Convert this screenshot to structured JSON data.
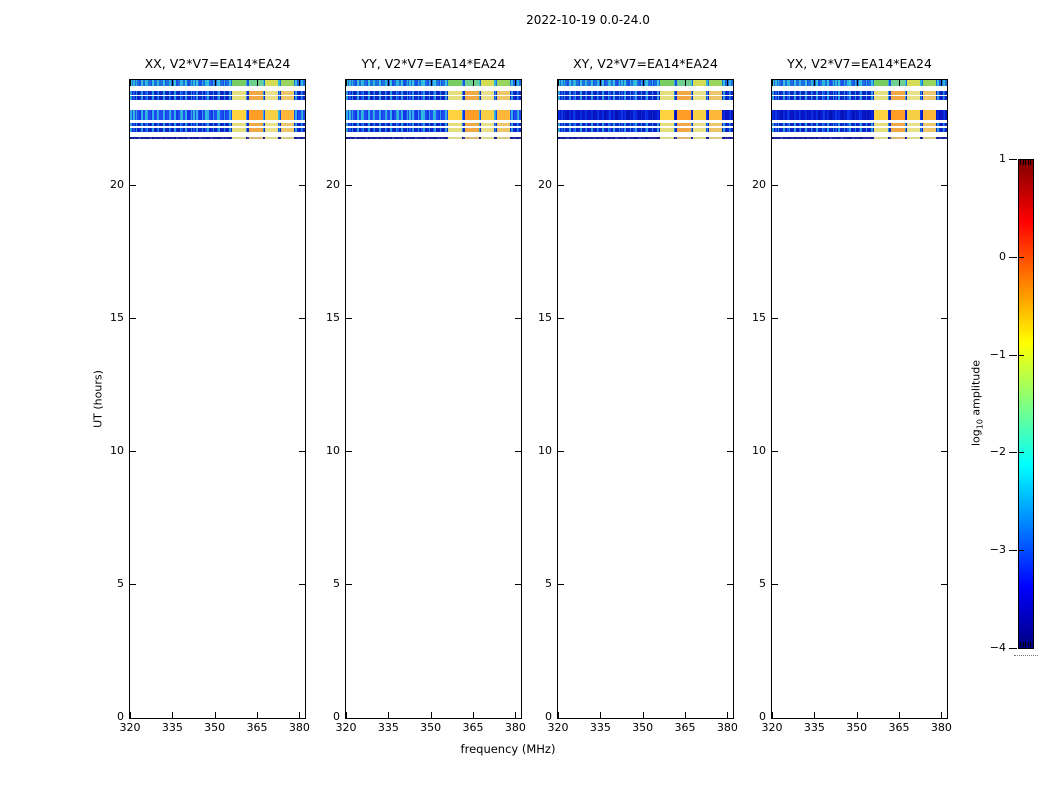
{
  "figure": {
    "suptitle": "2022-10-19 0.0-24.0"
  },
  "chart_data": {
    "type": "heatmap",
    "title": "2022-10-19 0.0-24.0",
    "panels": [
      {
        "id": "xx",
        "title": "XX, V2*V7=EA14*EA24",
        "thick_style": "thick_light"
      },
      {
        "id": "yy",
        "title": "YY, V2*V7=EA14*EA24",
        "thick_style": "thick_light"
      },
      {
        "id": "xy",
        "title": "XY, V2*V7=EA14*EA24",
        "thick_style": "thick_dark"
      },
      {
        "id": "yx",
        "title": "YX, V2*V7=EA14*EA24",
        "thick_style": "thick_dark"
      }
    ],
    "x_axis": {
      "label": "frequency (MHz)",
      "range": [
        320,
        382
      ],
      "ticks": [
        320,
        335,
        350,
        365,
        380
      ]
    },
    "y_axis": {
      "label": "UT (hours)",
      "range": [
        0,
        24
      ],
      "ticks": [
        0,
        5,
        10,
        15,
        20
      ]
    },
    "colorbar": {
      "label_prefix": "log",
      "label_sub": "10",
      "label_suffix": " amplitude",
      "range": [
        -4,
        1
      ],
      "colormap": "jet",
      "ticks": [
        {
          "value": 1,
          "label": "1"
        },
        {
          "value": 0,
          "label": "0"
        },
        {
          "value": -1,
          "label": "−1"
        },
        {
          "value": -2,
          "label": "−2"
        },
        {
          "value": -3,
          "label": "−3"
        },
        {
          "value": -4,
          "label": "−4"
        }
      ],
      "gradient_stops": [
        "#7f0000",
        "#ff0000",
        "#ff8000",
        "#ffff00",
        "#80ff80",
        "#00ffff",
        "#0080ff",
        "#0000ff",
        "#00007f"
      ]
    },
    "stripes": [
      {
        "kind": "top",
        "hours": [
          24.0,
          23.76
        ]
      },
      {
        "kind": "thin",
        "hours": [
          23.57,
          23.43
        ]
      },
      {
        "kind": "thin",
        "hours": [
          23.38,
          23.24
        ]
      },
      {
        "kind": "thick",
        "hours": [
          22.89,
          22.5
        ]
      },
      {
        "kind": "thin",
        "hours": [
          22.4,
          22.26
        ]
      },
      {
        "kind": "thin",
        "hours": [
          22.21,
          22.04
        ]
      },
      {
        "kind": "faint",
        "hours": [
          21.85,
          21.77
        ]
      }
    ],
    "patch_bands_mhz": [
      [
        356,
        361
      ],
      [
        362,
        367
      ],
      [
        368,
        372.5
      ],
      [
        373.5,
        378
      ]
    ],
    "stripe_kinds": {
      "top": {
        "noise": [
          "#38c4dc",
          "#1e6ee2",
          "#2fb9d8",
          "#1a50e6",
          "#30b0dc"
        ],
        "patches": [
          "#77cf62",
          "#6fcf8e",
          "#d5dc55",
          "#99d45c"
        ]
      },
      "thin": {
        "noise": [
          "#2b9fe0",
          "#0d24c4",
          "#1a55ec",
          "#0d2ecc",
          "#2490e0"
        ],
        "patches": [
          "#e6df7d",
          "#f2a844",
          "#e8e18a",
          "#edc66a"
        ]
      },
      "thick_light": {
        "noise": [
          "#2fb0ea",
          "#1e4cf0",
          "#30bcd8",
          "#1437e6",
          "#2e9ce8"
        ],
        "patches": [
          "#ffd23e",
          "#ff9d26",
          "#f7cf45",
          "#ffb73a"
        ]
      },
      "thick_dark": {
        "noise": [
          "#0a2ae0",
          "#0716c8",
          "#0c38e8",
          "#0512b4",
          "#0a28d2"
        ],
        "patches": [
          "#ffd23e",
          "#ff9d26",
          "#f7cf45",
          "#ffb73a"
        ]
      },
      "faint": {
        "noise": [
          "#0a1890",
          "#28289c",
          "#101ea0",
          "#3c3ca8",
          "#0a1890"
        ],
        "patches": [
          "#ded98c",
          "#dbb974",
          "#ded98c",
          "#d9cc82"
        ]
      }
    }
  }
}
